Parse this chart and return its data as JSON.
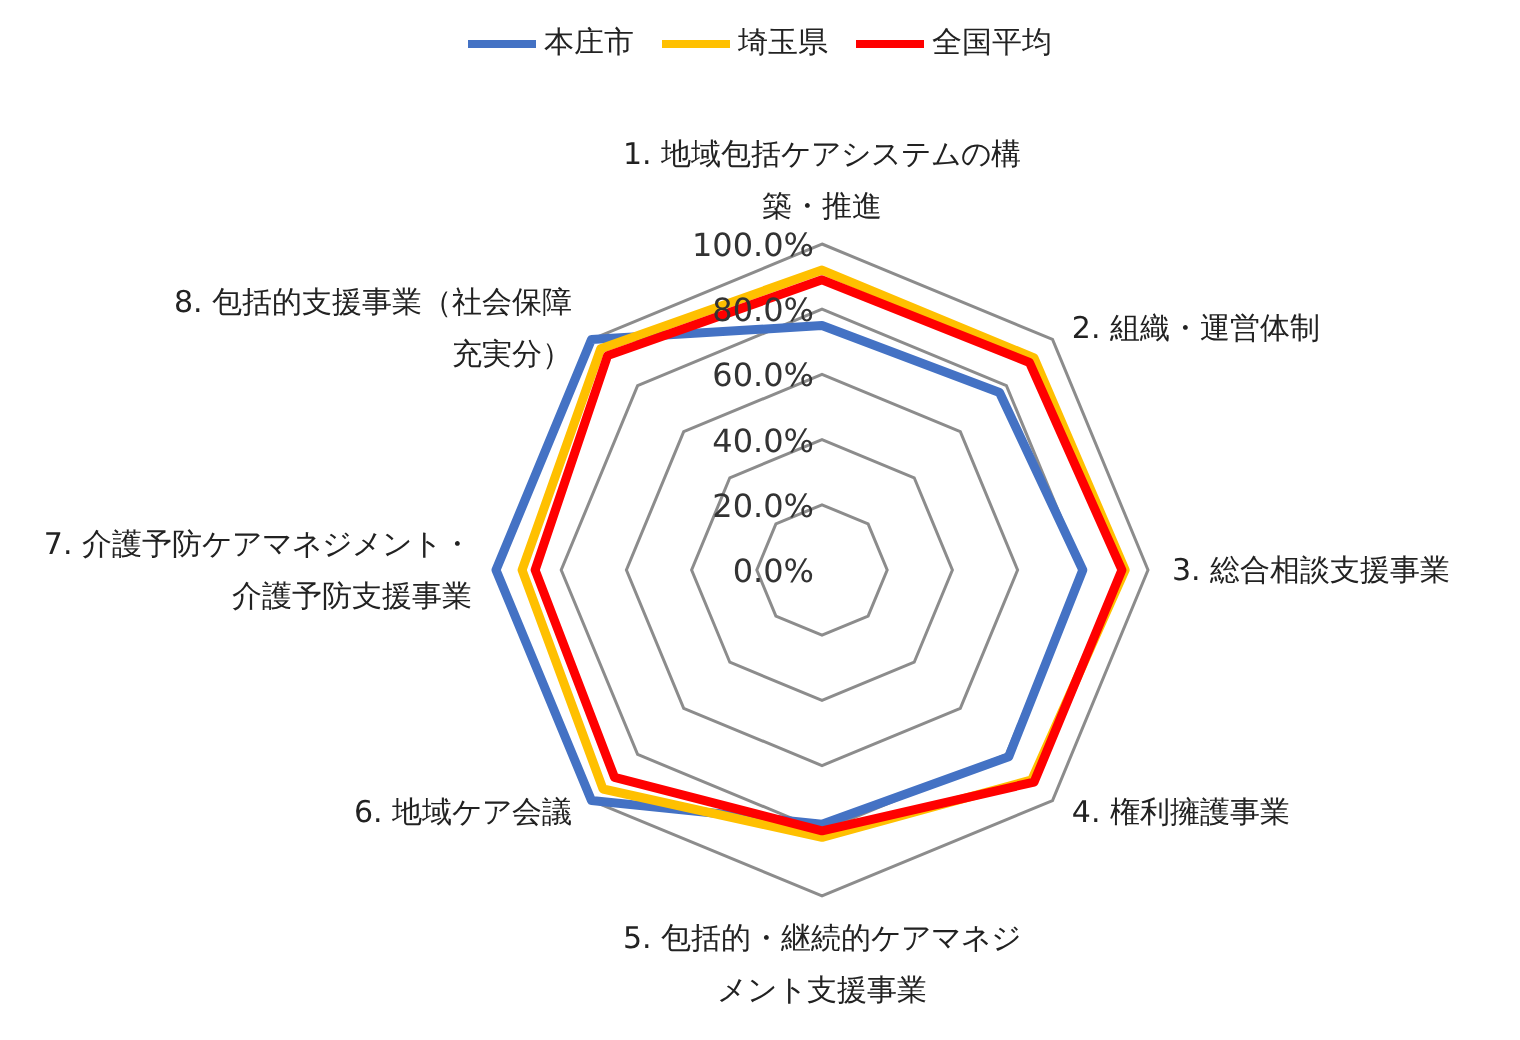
{
  "chart_data": {
    "type": "radar",
    "categories": [
      "1. 地域包括ケアシステムの構築・推進",
      "2. 組織・運営体制",
      "3. 総合相談支援事業",
      "4. 権利擁護事業",
      "5. 包括的・継続的ケアマネジメント支援事業",
      "6. 地域ケア会議",
      "7. 介護予防ケアマネジメント・介護予防支援事業",
      "8. 包括的支援事業（社会保障充実分）"
    ],
    "series": [
      {
        "name": "本庄市",
        "color": "#4472c4",
        "values": [
          75,
          77,
          80,
          81,
          78,
          100,
          100,
          100
        ]
      },
      {
        "name": "埼玉県",
        "color": "#ffc000",
        "values": [
          92,
          92,
          93,
          91,
          82,
          95,
          92,
          96
        ]
      },
      {
        "name": "全国平均",
        "color": "#ff0000",
        "values": [
          89,
          90,
          92,
          92,
          80,
          90,
          88,
          93
        ]
      }
    ],
    "ylim": [
      0,
      100
    ],
    "yticks": [
      {
        "value": 0,
        "label": "0.0%"
      },
      {
        "value": 20,
        "label": "20.0%"
      },
      {
        "value": 40,
        "label": "40.0%"
      },
      {
        "value": 60,
        "label": "60.0%"
      },
      {
        "value": 80,
        "label": "80.0%"
      },
      {
        "value": 100,
        "label": "100.0%"
      }
    ],
    "grid": true,
    "legend": "top",
    "marker": "none",
    "line_style": "solid"
  }
}
